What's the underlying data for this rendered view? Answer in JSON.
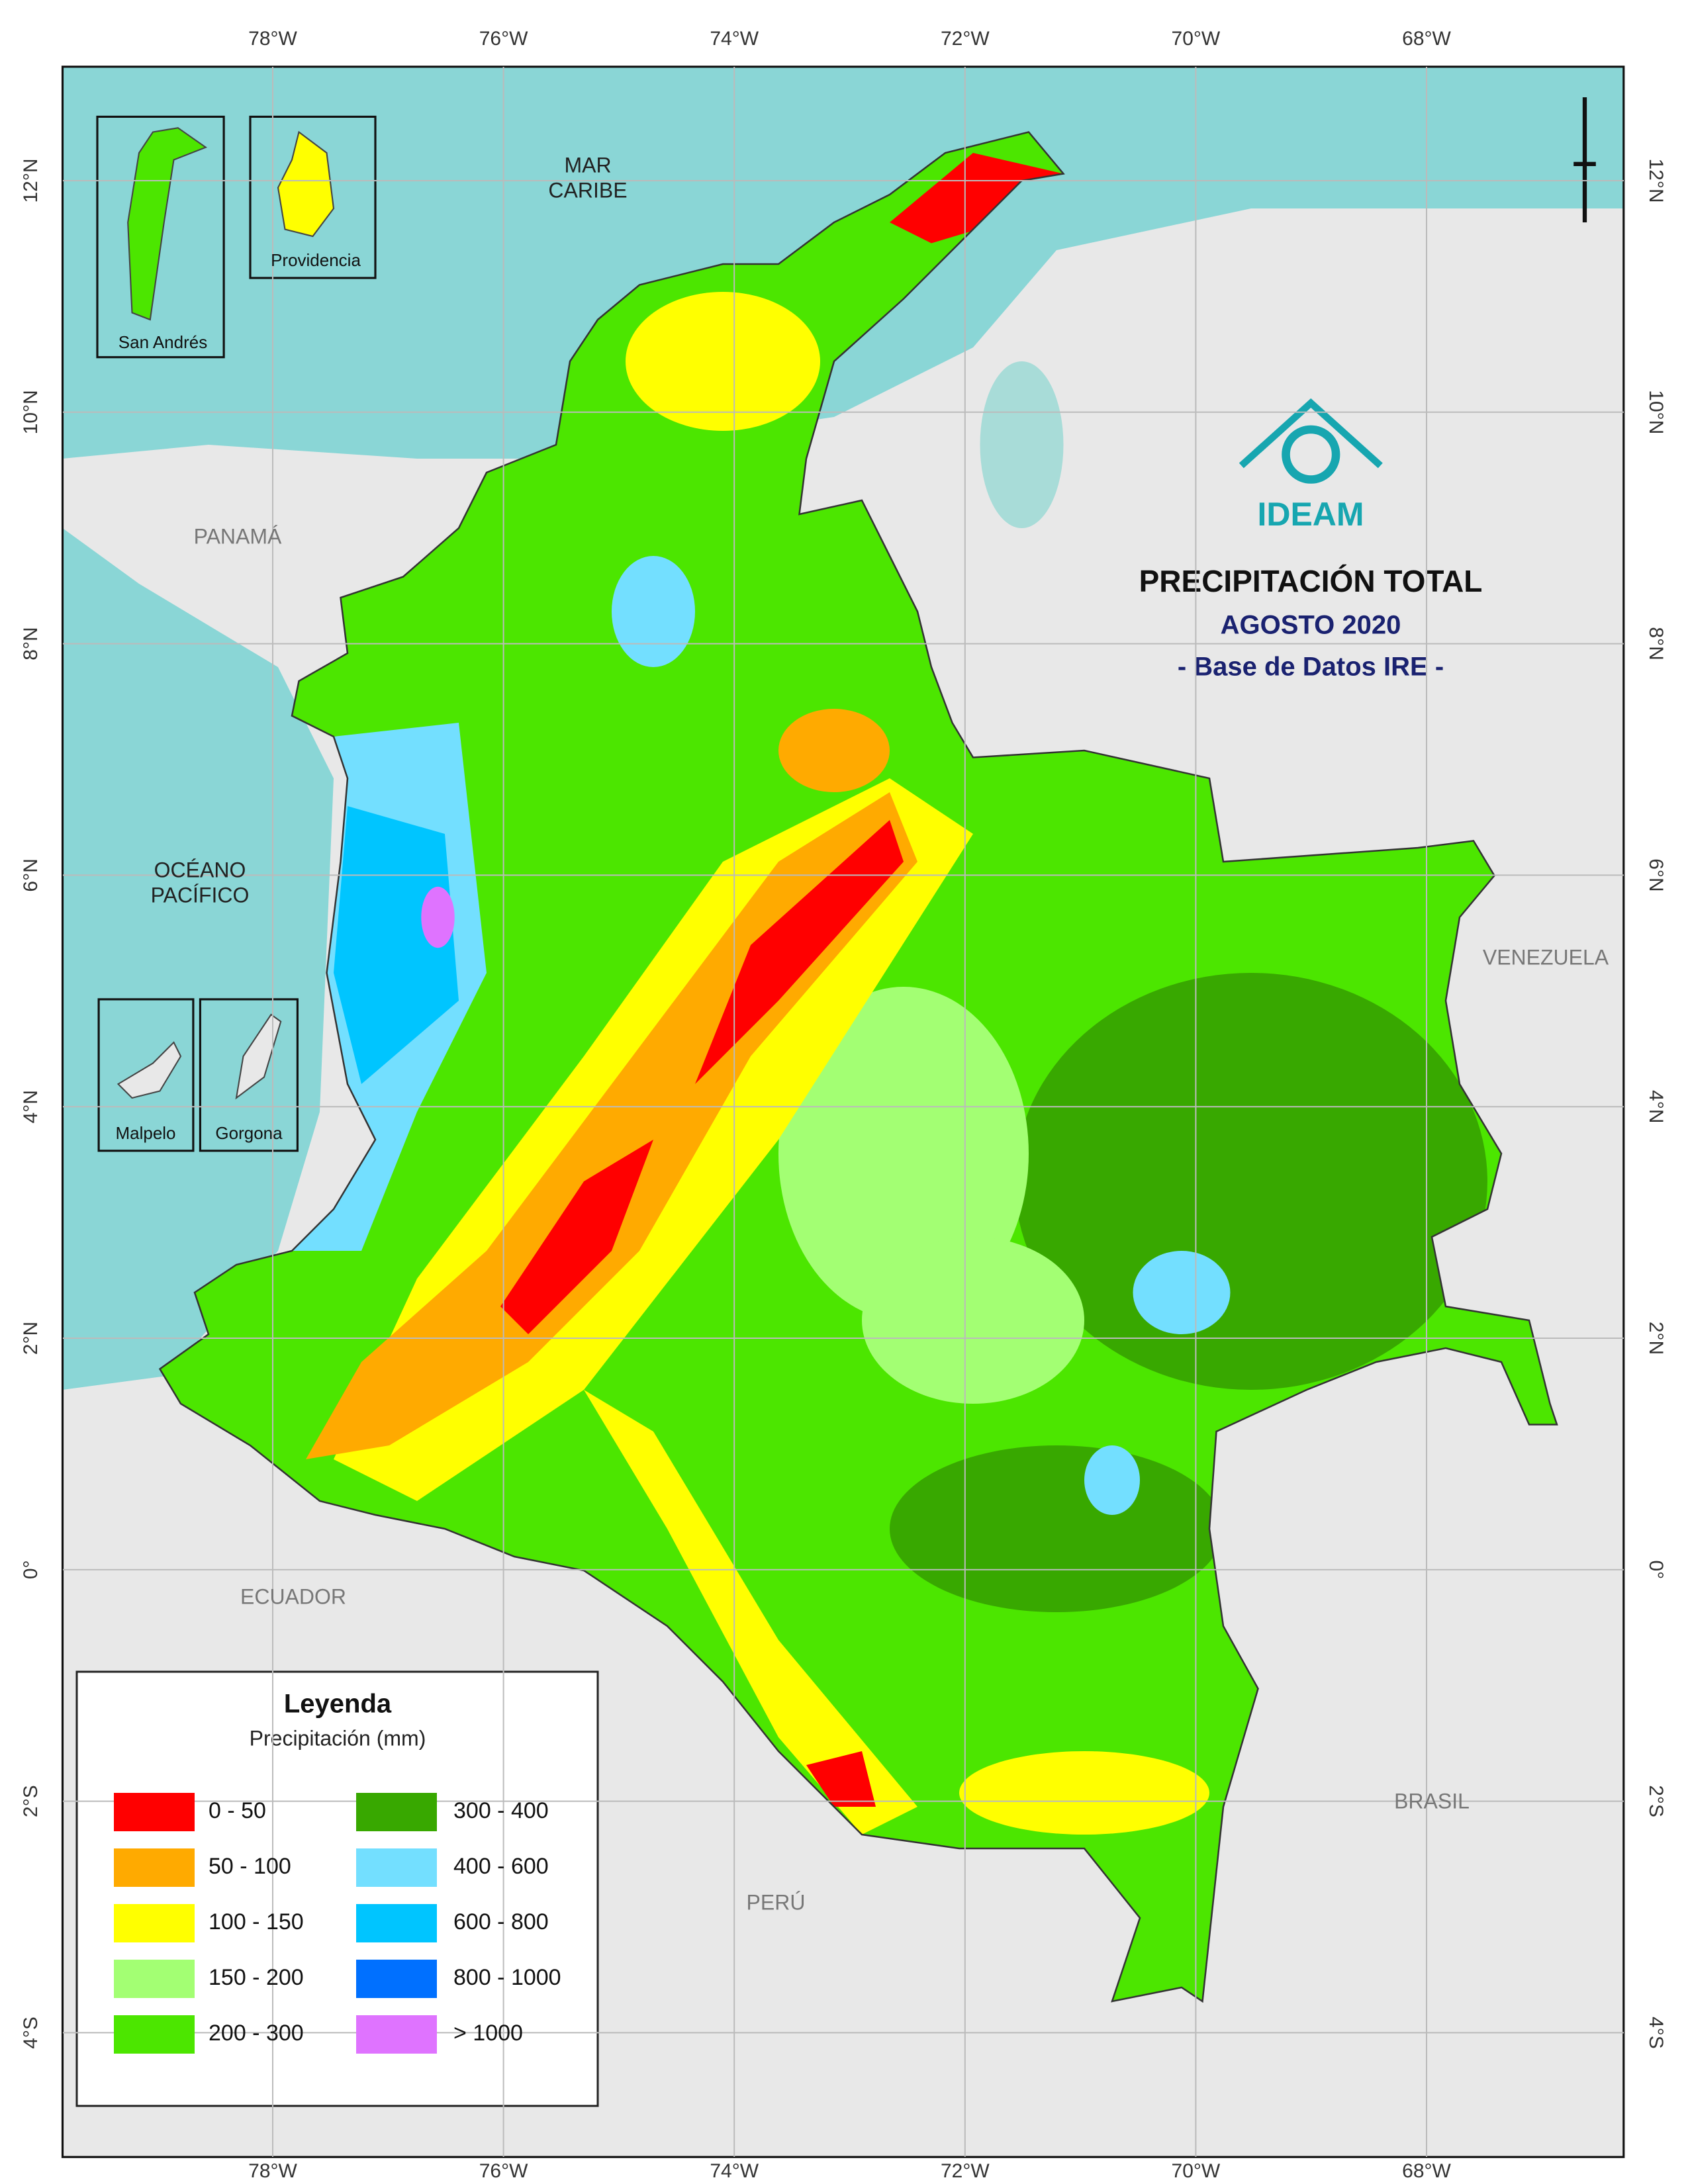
{
  "map": {
    "title": "PRECIPITACIÓN TOTAL",
    "subtitle": "AGOSTO 2020",
    "source": "- Base de Datos IRE -",
    "logo": "IDEAM",
    "place_labels": [
      {
        "lines": [
          "MAR",
          "CARIBE"
        ]
      },
      {
        "lines": [
          "PANAMÁ"
        ]
      },
      {
        "lines": [
          "OCÉANO",
          "PACÍFICO"
        ]
      },
      {
        "lines": [
          "VENEZUELA"
        ]
      },
      {
        "lines": [
          "ECUADOR"
        ]
      },
      {
        "lines": [
          "PERÚ"
        ]
      },
      {
        "lines": [
          "BRASIL"
        ]
      }
    ],
    "insets": [
      "San Andrés",
      "Providencia",
      "Malpelo",
      "Gorgona"
    ],
    "lon_ticks": [
      {
        "value": -78,
        "label": "78°W"
      },
      {
        "value": -76,
        "label": "76°W"
      },
      {
        "value": -74,
        "label": "74°W"
      },
      {
        "value": -72,
        "label": "72°W"
      },
      {
        "value": -70,
        "label": "70°W"
      },
      {
        "value": -68,
        "label": "68°W"
      }
    ],
    "lat_ticks": [
      {
        "value": 12,
        "label": "12°N"
      },
      {
        "value": 10,
        "label": "10°N"
      },
      {
        "value": 8,
        "label": "8°N"
      },
      {
        "value": 6,
        "label": "6°N"
      },
      {
        "value": 4,
        "label": "4°N"
      },
      {
        "value": 2,
        "label": "2°N"
      },
      {
        "value": 0,
        "label": "0°"
      },
      {
        "value": -2,
        "label": "2°S"
      },
      {
        "value": -4,
        "label": "4°S"
      }
    ],
    "legend": {
      "title": "Leyenda",
      "subtitle": "Precipitación (mm)",
      "items": [
        {
          "label": "0 - 50",
          "color": "#ff0000"
        },
        {
          "label": "50 - 100",
          "color": "#ffaa00"
        },
        {
          "label": "100 - 150",
          "color": "#ffff00"
        },
        {
          "label": "150 - 200",
          "color": "#a3ff73"
        },
        {
          "label": "200 - 300",
          "color": "#4ce600"
        },
        {
          "label": "300 - 400",
          "color": "#38a800"
        },
        {
          "label": "400 - 600",
          "color": "#73dfff"
        },
        {
          "label": "600 - 800",
          "color": "#00c5ff"
        },
        {
          "label": "800 - 1000",
          "color": "#0070ff"
        },
        {
          "label": "> 1000",
          "color": "#df73ff"
        }
      ]
    }
  }
}
